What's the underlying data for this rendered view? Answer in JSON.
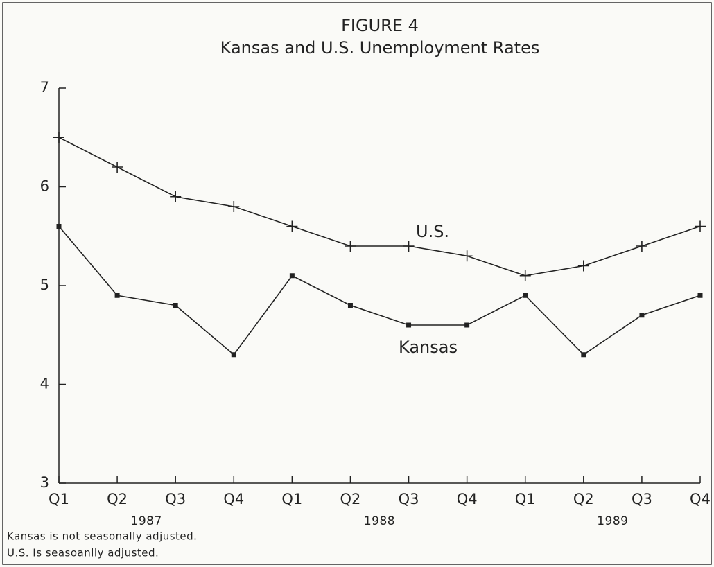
{
  "chart_data": {
    "type": "line",
    "title": "FIGURE 4",
    "subtitle": "Kansas and U.S. Unemployment Rates",
    "categories": [
      "Q1",
      "Q2",
      "Q3",
      "Q4",
      "Q1",
      "Q2",
      "Q3",
      "Q4",
      "Q1",
      "Q2",
      "Q3",
      "Q4"
    ],
    "year_labels": [
      "1987",
      "1988",
      "1989"
    ],
    "series": [
      {
        "name": "U.S.",
        "color": "#222222",
        "marker": "plus",
        "values": [
          6.5,
          6.2,
          5.9,
          5.8,
          5.6,
          5.4,
          5.4,
          5.3,
          5.1,
          5.2,
          5.4,
          5.6
        ]
      },
      {
        "name": "Kansas",
        "color": "#222222",
        "marker": "square",
        "values": [
          5.6,
          4.9,
          4.8,
          4.3,
          5.1,
          4.8,
          4.6,
          4.6,
          4.9,
          4.3,
          4.7,
          4.9
        ]
      }
    ],
    "ylim": [
      3,
      7
    ],
    "yticks": [
      3,
      4,
      5,
      6,
      7
    ],
    "grid": false,
    "notes": [
      "Kansas is not seasonally adjusted.",
      "U.S. Is seasoanlly adjusted."
    ]
  }
}
